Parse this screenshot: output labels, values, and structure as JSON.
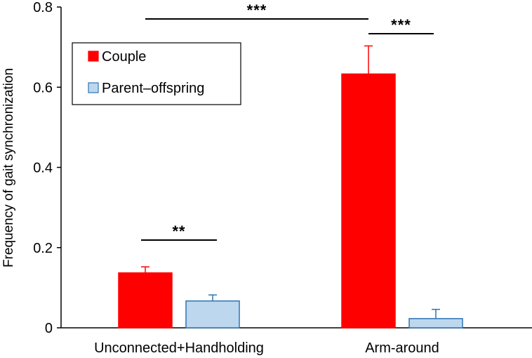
{
  "chart_data": {
    "type": "bar",
    "categories": [
      "Unconnected+Handholding",
      "Arm-around"
    ],
    "series": [
      {
        "name": "Couple",
        "values": [
          0.137,
          0.633
        ],
        "errors": [
          0.015,
          0.07
        ],
        "color": "#ff0000",
        "edge": "#ff0000"
      },
      {
        "name": "Parent–offspring",
        "values": [
          0.067,
          0.023
        ],
        "errors": [
          0.015,
          0.023
        ],
        "color": "#bdd7ee",
        "edge": "#2e75b6"
      }
    ],
    "ylabel": "Frequency of gait synchronization",
    "xlabel": "",
    "ylim": [
      0,
      0.8
    ],
    "yticks": [
      0,
      0.2,
      0.4,
      0.6,
      0.8
    ],
    "ytick_labels": [
      "0",
      "0.2",
      "0.4",
      "0.6",
      "0.8"
    ],
    "grid": false,
    "legend_position": "top-left",
    "significance": [
      {
        "label": "**",
        "between": [
          "Couple, Unconnected+Handholding",
          "Parent–offspring, Unconnected+Handholding"
        ]
      },
      {
        "label": "***",
        "between": [
          "Couple, Arm-around",
          "Parent–offspring, Arm-around"
        ]
      },
      {
        "label": "***",
        "between": [
          "Couple, Unconnected+Handholding",
          "Couple, Arm-around"
        ]
      }
    ]
  }
}
